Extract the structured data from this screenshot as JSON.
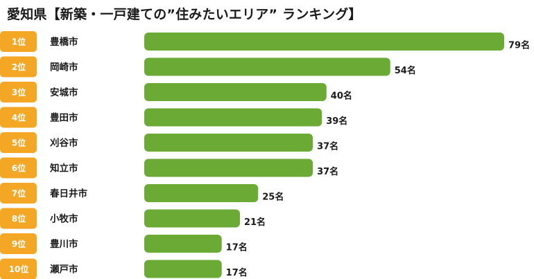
{
  "title": "愛知県【新築・一戸建ての”住みたいエリア” ランキング】",
  "colors": {
    "bar": "#6aaa35",
    "rank_badge": "#f4a724"
  },
  "chart_data": {
    "type": "bar",
    "orientation": "horizontal",
    "ranks": [
      "1位",
      "2位",
      "3位",
      "4位",
      "5位",
      "6位",
      "7位",
      "8位",
      "9位",
      "10位"
    ],
    "categories": [
      "豊橋市",
      "岡崎市",
      "安城市",
      "豊田市",
      "刈谷市",
      "知立市",
      "春日井市",
      "小牧市",
      "豊川市",
      "瀬戸市"
    ],
    "values": [
      79,
      54,
      40,
      39,
      37,
      37,
      25,
      21,
      17,
      17
    ],
    "value_labels": [
      "79名",
      "54名",
      "40名",
      "39名",
      "37名",
      "37名",
      "25名",
      "21名",
      "17名",
      "17名"
    ],
    "unit": "名",
    "xlim": [
      0,
      79
    ],
    "grid": false,
    "legend": "none"
  }
}
